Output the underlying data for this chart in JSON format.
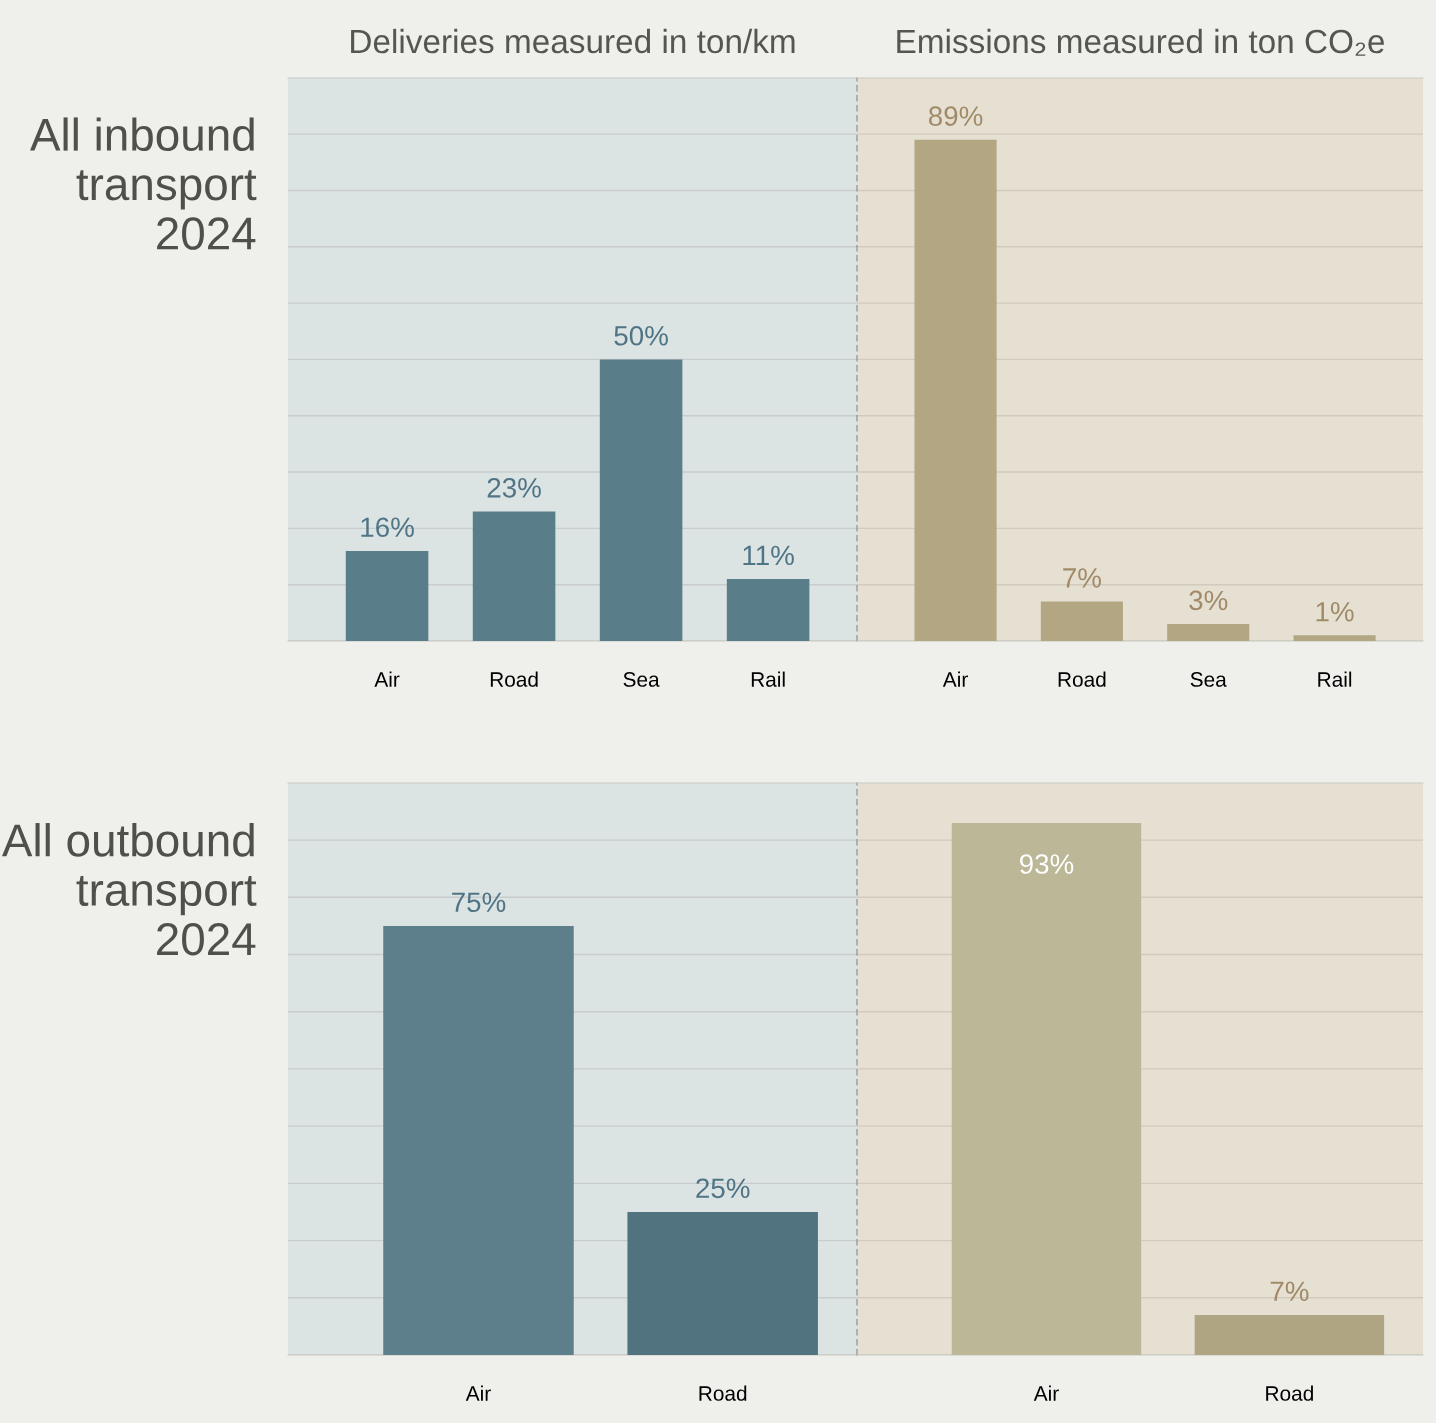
{
  "chart_data": [
    {
      "type": "bar",
      "title": "Deliveries measured in ton/km",
      "ylabel": "All inbound\ntransport\n2024",
      "categories": [
        "Air",
        "Road",
        "Sea",
        "Rail"
      ],
      "values": [
        16,
        23,
        50,
        11
      ],
      "value_labels": [
        "16%",
        "23%",
        "50%",
        "11%"
      ],
      "color": "#5a7d8a",
      "grid": "y",
      "tick_labels": "x"
    },
    {
      "type": "bar",
      "title": "Emissions measured in ton CO₂e",
      "categories": [
        "Air",
        "Road",
        "Sea",
        "Rail"
      ],
      "values": [
        89,
        7,
        3,
        1
      ],
      "value_labels": [
        "89%",
        "7%",
        "3%",
        "1%"
      ],
      "color": "#b3a682",
      "grid": "y",
      "tick_labels": "x"
    },
    {
      "type": "bar",
      "ylabel": "All outbound\ntransport\n2024",
      "categories": [
        "Air",
        "Road"
      ],
      "values": [
        75,
        25
      ],
      "value_labels": [
        "75%",
        "25%"
      ],
      "colors": [
        "#5c7f8b",
        "#50737f"
      ],
      "grid": "y",
      "tick_labels": "x"
    },
    {
      "type": "bar",
      "categories": [
        "Air",
        "Road"
      ],
      "values": [
        93,
        7
      ],
      "value_labels": [
        "93%",
        "7%"
      ],
      "colors": [
        "#bcb797",
        "#b0a582"
      ],
      "grid": "y",
      "tick_labels": "x"
    }
  ]
}
